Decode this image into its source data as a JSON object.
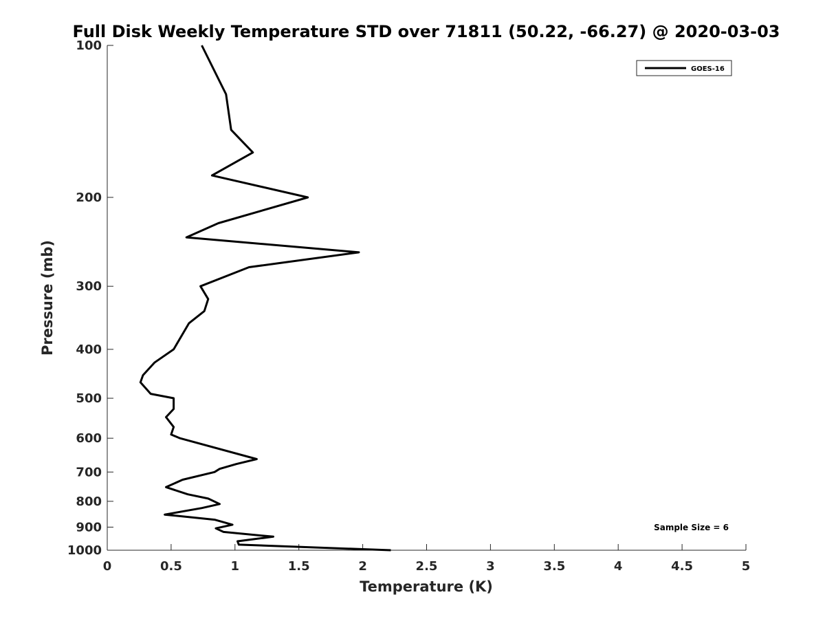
{
  "chart_data": {
    "type": "line",
    "title": "Full Disk Weekly Temperature STD over 71811 (50.22, -66.27) @ 2020-03-03",
    "xlabel": "Temperature (K)",
    "ylabel": "Pressure (mb)",
    "xlim": [
      0,
      5
    ],
    "ylim": [
      100,
      1000
    ],
    "y_scale": "log",
    "y_reversed": true,
    "x_ticks": [
      "0",
      "0.5",
      "1",
      "1.5",
      "2",
      "2.5",
      "3",
      "3.5",
      "4",
      "4.5",
      "5"
    ],
    "y_ticks": [
      "100",
      "200",
      "300",
      "400",
      "500",
      "600",
      "700",
      "800",
      "900",
      "1000"
    ],
    "grid": false,
    "legend_position": "top-right",
    "annotation": "Sample Size = 6",
    "series": [
      {
        "name": "GOES-16",
        "color": "#000000",
        "points": [
          [
            0.74,
            100
          ],
          [
            0.93,
            125
          ],
          [
            0.97,
            147
          ],
          [
            1.14,
            163
          ],
          [
            0.82,
            181
          ],
          [
            1.57,
            200
          ],
          [
            0.87,
            225
          ],
          [
            0.62,
            240
          ],
          [
            1.97,
            257
          ],
          [
            1.11,
            275
          ],
          [
            0.73,
            300
          ],
          [
            0.79,
            318
          ],
          [
            0.76,
            336
          ],
          [
            0.64,
            355
          ],
          [
            0.52,
            400
          ],
          [
            0.37,
            425
          ],
          [
            0.28,
            450
          ],
          [
            0.26,
            465
          ],
          [
            0.34,
            490
          ],
          [
            0.52,
            500
          ],
          [
            0.52,
            525
          ],
          [
            0.46,
            545
          ],
          [
            0.52,
            570
          ],
          [
            0.5,
            590
          ],
          [
            0.57,
            600
          ],
          [
            1.17,
            660
          ],
          [
            1.01,
            675
          ],
          [
            0.88,
            690
          ],
          [
            0.84,
            700
          ],
          [
            0.59,
            725
          ],
          [
            0.46,
            750
          ],
          [
            0.63,
            775
          ],
          [
            0.79,
            790
          ],
          [
            0.88,
            810
          ],
          [
            0.74,
            825
          ],
          [
            0.45,
            850
          ],
          [
            0.84,
            870
          ],
          [
            0.98,
            890
          ],
          [
            0.85,
            905
          ],
          [
            0.91,
            920
          ],
          [
            1.3,
            940
          ],
          [
            1.02,
            960
          ],
          [
            1.03,
            975
          ],
          [
            2.22,
            1000
          ]
        ]
      }
    ]
  }
}
